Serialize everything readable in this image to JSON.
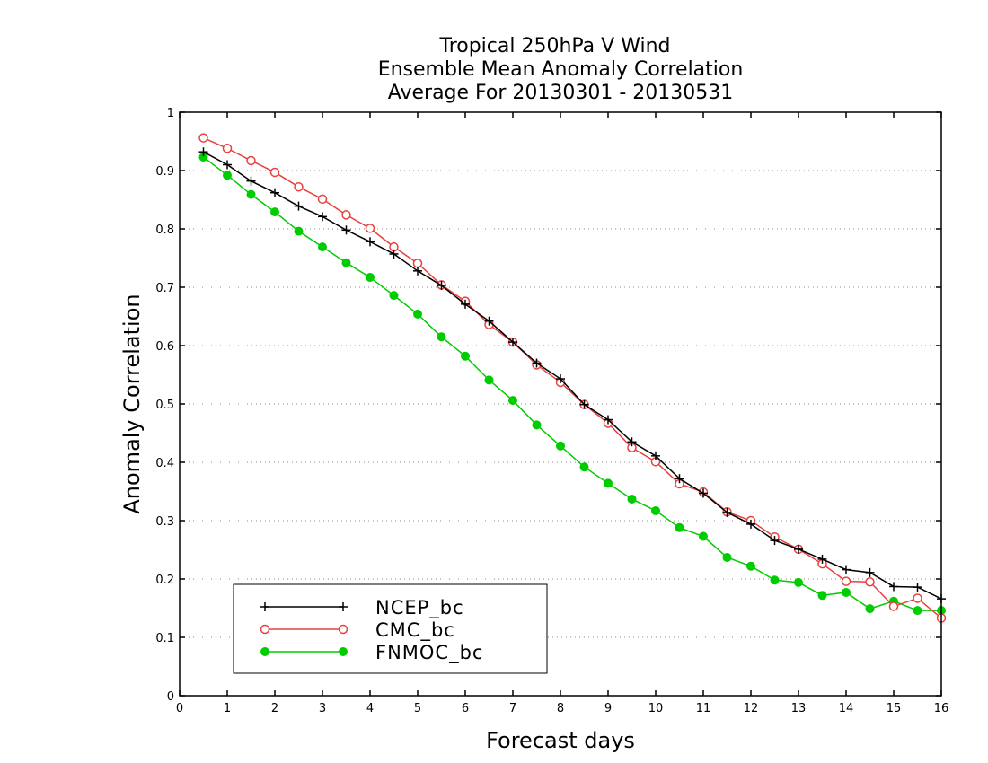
{
  "chart_data": {
    "type": "line",
    "title": "Tropical 250hPa V Wind",
    "subtitle": "Ensemble Mean Anomaly Correlation",
    "subtitle2": "Average For 20130301 - 20130531",
    "xlabel": "Forecast days",
    "ylabel": "Anomaly Correlation",
    "xlim": [
      0,
      16
    ],
    "ylim": [
      0,
      1
    ],
    "xticks": [
      "0",
      "1",
      "2",
      "3",
      "4",
      "5",
      "6",
      "7",
      "8",
      "9",
      "10",
      "11",
      "12",
      "13",
      "14",
      "15",
      "16"
    ],
    "yticks": [
      "0",
      "0.1",
      "0.2",
      "0.3",
      "0.4",
      "0.5",
      "0.6",
      "0.7",
      "0.8",
      "0.9",
      "1"
    ],
    "grid": "horizontal dotted",
    "legend_position": "bottom-left",
    "x": [
      0.5,
      1,
      1.5,
      2,
      2.5,
      3,
      3.5,
      4,
      4.5,
      5,
      5.5,
      6,
      6.5,
      7,
      7.5,
      8,
      8.5,
      9,
      9.5,
      10,
      10.5,
      11,
      11.5,
      12,
      12.5,
      13,
      13.5,
      14,
      14.5,
      15,
      15.5,
      16
    ],
    "series": [
      {
        "name": "NCEP_bc",
        "color": "#000000",
        "marker": "plus",
        "values": [
          0.932,
          0.91,
          0.882,
          0.862,
          0.839,
          0.821,
          0.798,
          0.778,
          0.757,
          0.728,
          0.703,
          0.671,
          0.642,
          0.606,
          0.57,
          0.543,
          0.499,
          0.473,
          0.435,
          0.411,
          0.372,
          0.347,
          0.314,
          0.294,
          0.266,
          0.251,
          0.234,
          0.216,
          0.211,
          0.187,
          0.186,
          0.166
        ]
      },
      {
        "name": "CMC_bc",
        "color": "#e8403f",
        "marker": "open-circle",
        "values": [
          0.956,
          0.938,
          0.917,
          0.897,
          0.872,
          0.851,
          0.824,
          0.801,
          0.769,
          0.741,
          0.704,
          0.676,
          0.636,
          0.606,
          0.567,
          0.537,
          0.499,
          0.467,
          0.425,
          0.401,
          0.363,
          0.349,
          0.315,
          0.3,
          0.272,
          0.251,
          0.226,
          0.196,
          0.195,
          0.153,
          0.167,
          0.133
        ]
      },
      {
        "name": "FNMOC_bc",
        "color": "#00cc00",
        "marker": "filled-circle",
        "values": [
          0.923,
          0.892,
          0.859,
          0.829,
          0.796,
          0.769,
          0.742,
          0.717,
          0.686,
          0.654,
          0.615,
          0.582,
          0.541,
          0.506,
          0.464,
          0.428,
          0.392,
          0.364,
          0.337,
          0.317,
          0.288,
          0.273,
          0.237,
          0.222,
          0.198,
          0.194,
          0.172,
          0.177,
          0.149,
          0.162,
          0.146,
          0.146
        ]
      }
    ]
  }
}
